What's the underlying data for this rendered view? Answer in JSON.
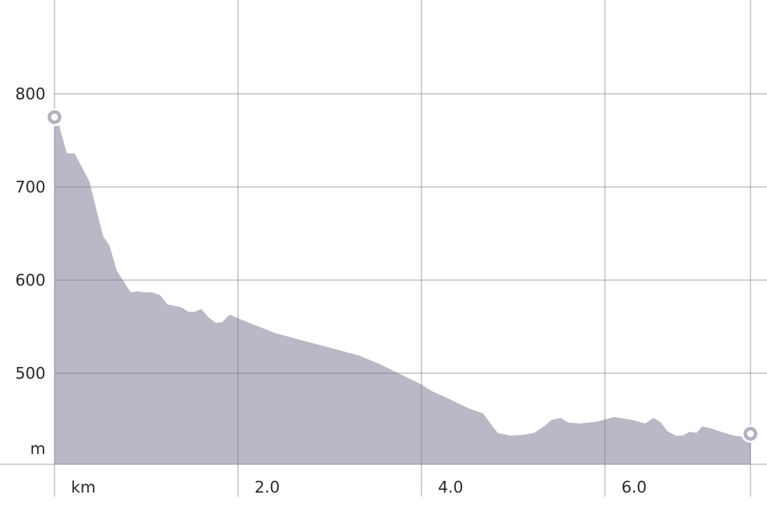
{
  "chart_data": {
    "type": "area",
    "xlabel": "km",
    "ylabel": "m",
    "x_ticks": [
      {
        "value": 0,
        "label": "km"
      },
      {
        "value": 2,
        "label": "2.0"
      },
      {
        "value": 4,
        "label": "4.0"
      },
      {
        "value": 6,
        "label": "6.0"
      }
    ],
    "y_ticks": [
      {
        "value": 500,
        "label": "500"
      },
      {
        "value": 600,
        "label": "600"
      },
      {
        "value": 700,
        "label": "700"
      },
      {
        "value": 800,
        "label": "800"
      }
    ],
    "xlim": [
      0,
      7.59
    ],
    "ylim": [
      402,
      900
    ],
    "grid": true,
    "fill_color": "#b9b8c6",
    "grid_color": "#cfcfd4",
    "series": [
      {
        "x": [
          0,
          0.05,
          0.135,
          0.22,
          0.38,
          0.53,
          0.6,
          0.68,
          0.83,
          0.91,
          0.98,
          1.06,
          1.15,
          1.23,
          1.38,
          1.46,
          1.53,
          1.6,
          1.68,
          1.76,
          1.83,
          1.91,
          2.0,
          2.41,
          2.79,
          3.02,
          3.32,
          3.54,
          3.77,
          4.0,
          4.11,
          4.29,
          4.52,
          4.67,
          4.76,
          4.83,
          4.97,
          5.12,
          5.23,
          5.35,
          5.42,
          5.52,
          5.6,
          5.72,
          5.91,
          6.1,
          6.29,
          6.44,
          6.53,
          6.61,
          6.68,
          6.77,
          6.85,
          6.92,
          7.0,
          7.06,
          7.15,
          7.3,
          7.41,
          7.59
        ],
        "y": [
          765,
          766,
          736,
          736,
          706,
          647,
          637,
          610,
          587,
          588,
          587,
          587,
          584,
          574,
          571,
          566,
          566,
          569,
          560,
          554,
          555,
          563,
          559,
          543,
          533,
          527,
          519,
          510,
          499,
          488,
          481,
          473,
          462,
          457,
          445,
          436,
          433,
          434,
          436,
          444,
          450,
          452,
          447,
          446,
          448,
          453,
          450,
          446,
          452,
          447,
          438,
          433,
          433,
          437,
          436,
          443,
          441,
          436,
          433,
          431
        ]
      }
    ],
    "markers": [
      {
        "x": 0,
        "y": 775,
        "role": "start"
      },
      {
        "x": 7.59,
        "y": 435,
        "role": "end"
      }
    ]
  }
}
